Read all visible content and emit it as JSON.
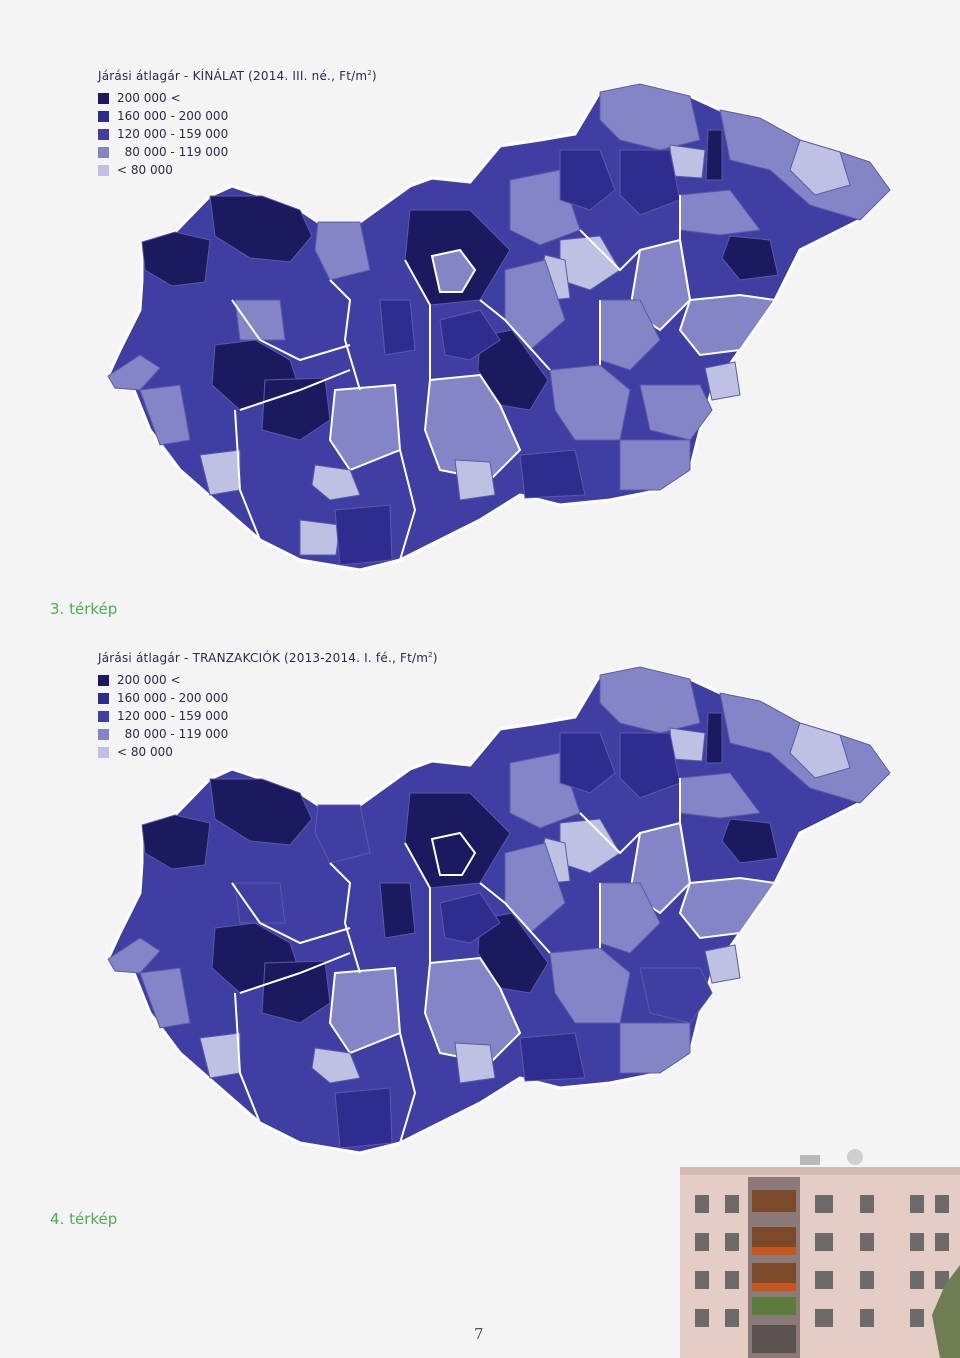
{
  "maps": [
    {
      "title": "Járási átlagár - KÍNÁLAT (2014. III. né., Ft/m",
      "title_sup": "2",
      "title_close": ")",
      "caption": "3. térkép"
    },
    {
      "title": "Járási átlagár - TRANZAKCIÓK (2013-2014. I. fé., Ft/m",
      "title_sup": "2",
      "title_close": ")",
      "caption": "4. térkép"
    }
  ],
  "legend": [
    {
      "label": "200 000 <",
      "color": "#1c1a5e"
    },
    {
      "label": "160 000 - 200 000",
      "color": "#2e2d8f"
    },
    {
      "label": "120 000 - 159 000",
      "color": "#3f3ea3"
    },
    {
      "label": "  80 000 - 119 000",
      "color": "#8385c6"
    },
    {
      "label": "< 80 000",
      "color": "#bfc1e3"
    }
  ],
  "page_number": "7"
}
